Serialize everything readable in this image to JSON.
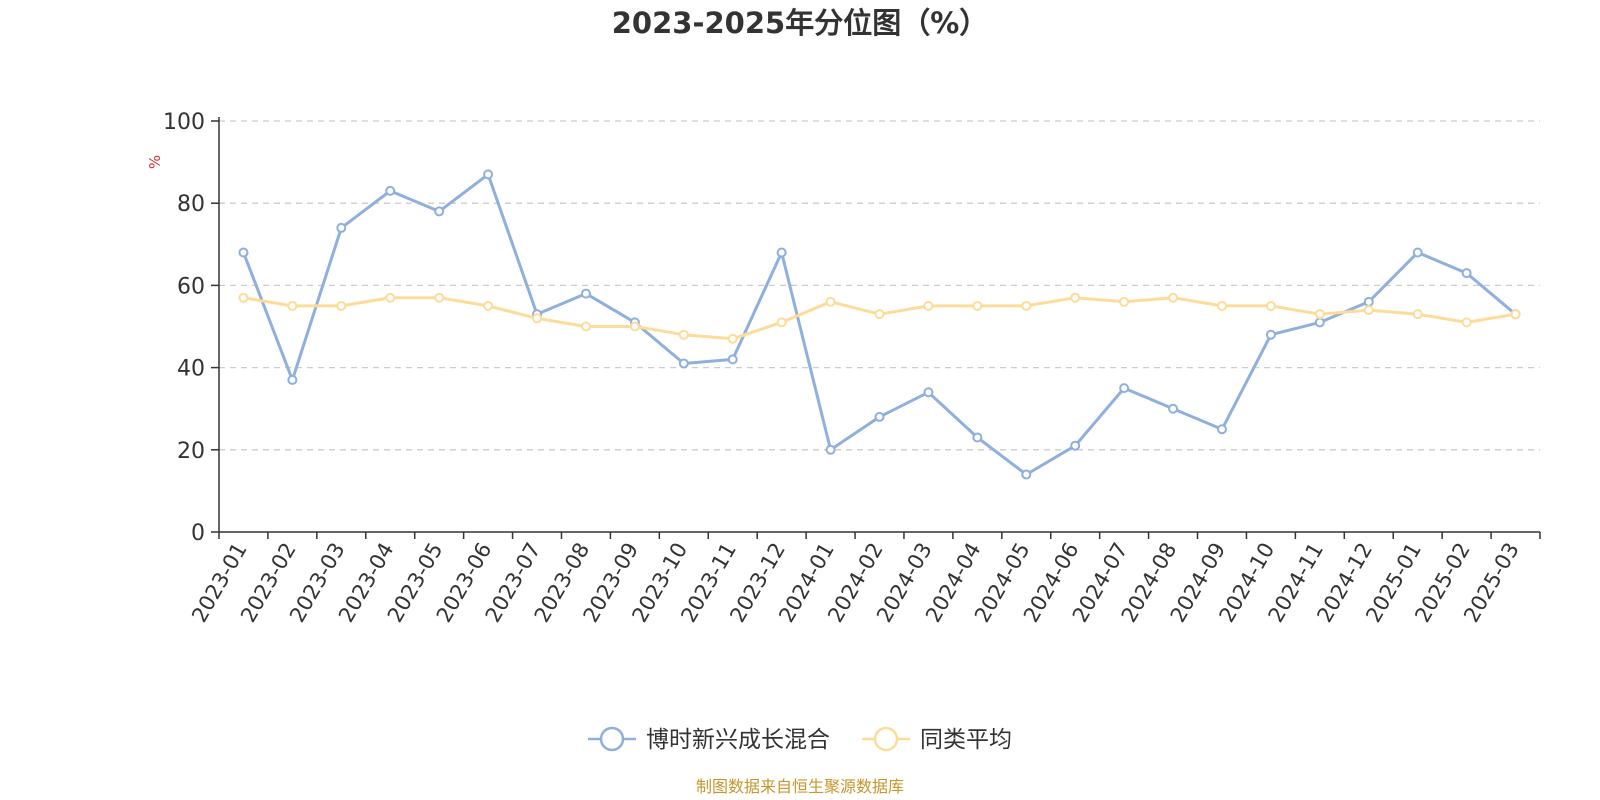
{
  "chart_data": {
    "type": "line",
    "title": "2023-2025年分位图（%）",
    "ylabel": "%",
    "ylim": [
      0,
      100
    ],
    "yticks": [
      0,
      20,
      40,
      60,
      80,
      100
    ],
    "categories": [
      "2023-01",
      "2023-02",
      "2023-03",
      "2023-04",
      "2023-05",
      "2023-06",
      "2023-07",
      "2023-08",
      "2023-09",
      "2023-10",
      "2023-11",
      "2023-12",
      "2024-01",
      "2024-02",
      "2024-03",
      "2024-04",
      "2024-05",
      "2024-06",
      "2024-07",
      "2024-08",
      "2024-09",
      "2024-10",
      "2024-11",
      "2024-12",
      "2025-01",
      "2025-02",
      "2025-03"
    ],
    "series": [
      {
        "name": "博时新兴成长混合",
        "color": "#8fafdc",
        "values": [
          68,
          37,
          74,
          83,
          78,
          87,
          53,
          58,
          51,
          41,
          42,
          68,
          20,
          28,
          34,
          23,
          14,
          21,
          35,
          30,
          25,
          48,
          51,
          56,
          68,
          63,
          53
        ]
      },
      {
        "name": "同类平均",
        "color": "#fddc9a",
        "values": [
          57,
          55,
          55,
          57,
          57,
          55,
          52,
          50,
          50,
          48,
          47,
          51,
          56,
          53,
          55,
          55,
          55,
          57,
          56,
          57,
          55,
          55,
          53,
          54,
          53,
          51,
          53
        ]
      }
    ],
    "grid": true,
    "legend_position": "bottom-center",
    "source": "制图数据来自恒生聚源数据库",
    "unit_color": "#e03030",
    "source_color": "#c8962a",
    "axis_color": "#333333",
    "grid_color": "#cccccc"
  }
}
